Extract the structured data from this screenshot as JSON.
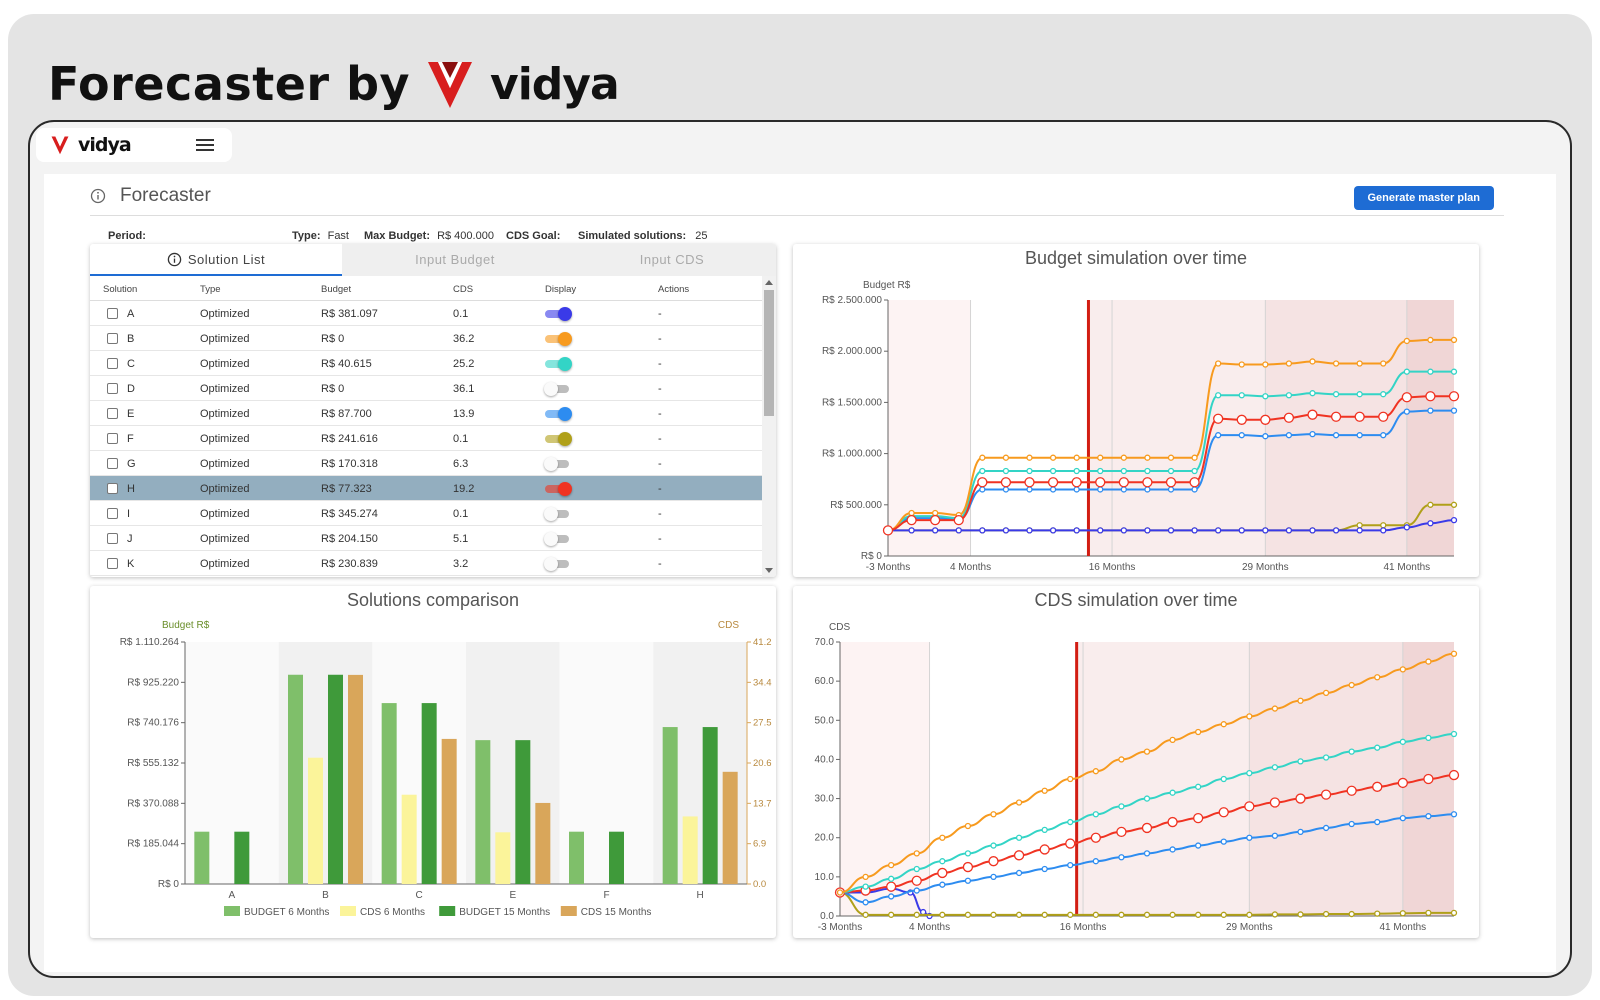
{
  "brand": {
    "prefix": "Forecaster by",
    "name": "vidya"
  },
  "app": {
    "name": "vidya",
    "page_title": "Forecaster",
    "generate_label": "Generate master plan"
  },
  "meta": {
    "period_label": "Period:",
    "type_label": "Type:",
    "type_value": "Fast",
    "max_budget_label": "Max Budget:",
    "max_budget_value": "R$ 400.000",
    "cds_goal_label": "CDS Goal:",
    "simulated_label": "Simulated solutions:",
    "simulated_value": "25"
  },
  "tabs": [
    "Solution List",
    "Input Budget",
    "Input CDS"
  ],
  "table": {
    "headers": [
      "Solution",
      "Type",
      "Budget",
      "CDS",
      "Display",
      "Actions"
    ],
    "rows": [
      {
        "solution": "A",
        "type": "Optimized",
        "budget": "R$ 381.097",
        "cds": "0.1",
        "display": true,
        "color": "#3a3ae8",
        "actions": "-"
      },
      {
        "solution": "B",
        "type": "Optimized",
        "budget": "R$ 0",
        "cds": "36.2",
        "display": true,
        "color": "#f79a1e",
        "actions": "-"
      },
      {
        "solution": "C",
        "type": "Optimized",
        "budget": "R$ 40.615",
        "cds": "25.2",
        "display": true,
        "color": "#33d4c6",
        "actions": "-"
      },
      {
        "solution": "D",
        "type": "Optimized",
        "budget": "R$ 0",
        "cds": "36.1",
        "display": false,
        "color": "#bdbdbd",
        "actions": "-"
      },
      {
        "solution": "E",
        "type": "Optimized",
        "budget": "R$ 87.700",
        "cds": "13.9",
        "display": true,
        "color": "#2d8cf0",
        "actions": "-"
      },
      {
        "solution": "F",
        "type": "Optimized",
        "budget": "R$ 241.616",
        "cds": "0.1",
        "display": true,
        "color": "#b0a019",
        "actions": "-"
      },
      {
        "solution": "G",
        "type": "Optimized",
        "budget": "R$ 170.318",
        "cds": "6.3",
        "display": false,
        "color": "#bdbdbd",
        "actions": "-"
      },
      {
        "solution": "H",
        "type": "Optimized",
        "budget": "R$ 77.323",
        "cds": "19.2",
        "display": true,
        "color": "#f03322",
        "actions": "-",
        "selected": true
      },
      {
        "solution": "I",
        "type": "Optimized",
        "budget": "R$ 345.274",
        "cds": "0.1",
        "display": false,
        "color": "#bdbdbd",
        "actions": "-"
      },
      {
        "solution": "J",
        "type": "Optimized",
        "budget": "R$ 204.150",
        "cds": "5.1",
        "display": false,
        "color": "#bdbdbd",
        "actions": "-"
      },
      {
        "solution": "K",
        "type": "Optimized",
        "budget": "R$ 230.839",
        "cds": "3.2",
        "display": false,
        "color": "#bdbdbd",
        "actions": "-"
      }
    ]
  },
  "chart_data": [
    {
      "type": "line",
      "title": "Budget simulation over time",
      "ylabel": "Budget R$",
      "x_range": [
        -3,
        45
      ],
      "xticks": [
        {
          "x": -3,
          "label": "-3 Months"
        },
        {
          "x": 4,
          "label": "4 Months"
        },
        {
          "x": 16,
          "label": "16 Months"
        },
        {
          "x": 29,
          "label": "29 Months"
        },
        {
          "x": 41,
          "label": "41 Months"
        }
      ],
      "ylim": [
        0,
        2500000
      ],
      "yticks": [
        {
          "y": 0,
          "label": "R$ 0"
        },
        {
          "y": 500000,
          "label": "R$ 500.000"
        },
        {
          "y": 1000000,
          "label": "R$ 1.000.000"
        },
        {
          "y": 1500000,
          "label": "R$ 1.500.000"
        },
        {
          "y": 2000000,
          "label": "R$ 2.000.000"
        },
        {
          "y": 2500000,
          "label": "R$ 2.500.000"
        }
      ],
      "current_x": 14,
      "grid": true,
      "series": [
        {
          "color": "#b0a019",
          "x": [
            -3,
            -1,
            1,
            3,
            5,
            7,
            9,
            11,
            13,
            15,
            17,
            19,
            21,
            23,
            25,
            27,
            29,
            31,
            33,
            35,
            37,
            39,
            41,
            43,
            45
          ],
          "values": [
            250000,
            250000,
            250000,
            250000,
            250000,
            250000,
            250000,
            250000,
            250000,
            250000,
            250000,
            250000,
            250000,
            250000,
            250000,
            250000,
            250000,
            250000,
            250000,
            250000,
            300000,
            300000,
            300000,
            500000,
            500000
          ]
        },
        {
          "color": "#3a3ae8",
          "x": [
            -3,
            -1,
            1,
            3,
            5,
            7,
            9,
            11,
            13,
            15,
            17,
            19,
            21,
            23,
            25,
            27,
            29,
            31,
            33,
            35,
            37,
            39,
            41,
            43,
            45
          ],
          "values": [
            250000,
            250000,
            250000,
            250000,
            250000,
            250000,
            250000,
            250000,
            250000,
            250000,
            250000,
            250000,
            250000,
            250000,
            250000,
            250000,
            250000,
            250000,
            250000,
            250000,
            250000,
            250000,
            280000,
            320000,
            350000
          ]
        },
        {
          "color": "#2d8cf0",
          "x": [
            -3,
            -1,
            1,
            3,
            5,
            7,
            9,
            11,
            13,
            15,
            17,
            19,
            21,
            23,
            25,
            27,
            29,
            31,
            33,
            35,
            37,
            39,
            41,
            43,
            45
          ],
          "values": [
            250000,
            370000,
            370000,
            360000,
            650000,
            650000,
            650000,
            650000,
            650000,
            650000,
            650000,
            650000,
            650000,
            650000,
            1180000,
            1180000,
            1170000,
            1180000,
            1190000,
            1180000,
            1180000,
            1180000,
            1410000,
            1420000,
            1420000
          ]
        },
        {
          "color": "#33d4c6",
          "x": [
            -3,
            -1,
            1,
            3,
            5,
            7,
            9,
            11,
            13,
            15,
            17,
            19,
            21,
            23,
            25,
            27,
            29,
            31,
            33,
            35,
            37,
            39,
            41,
            43,
            45
          ],
          "values": [
            250000,
            390000,
            390000,
            370000,
            830000,
            830000,
            830000,
            830000,
            830000,
            830000,
            830000,
            830000,
            830000,
            830000,
            1570000,
            1570000,
            1560000,
            1570000,
            1590000,
            1580000,
            1580000,
            1580000,
            1800000,
            1800000,
            1800000
          ]
        },
        {
          "color": "#f79a1e",
          "x": [
            -3,
            -1,
            1,
            3,
            5,
            7,
            9,
            11,
            13,
            15,
            17,
            19,
            21,
            23,
            25,
            27,
            29,
            31,
            33,
            35,
            37,
            39,
            41,
            43,
            45
          ],
          "values": [
            250000,
            420000,
            420000,
            400000,
            960000,
            960000,
            960000,
            960000,
            960000,
            960000,
            960000,
            960000,
            960000,
            960000,
            1880000,
            1870000,
            1870000,
            1880000,
            1900000,
            1880000,
            1880000,
            1880000,
            2100000,
            2110000,
            2110000
          ]
        },
        {
          "color": "#f03322",
          "marker": "large",
          "x": [
            -3,
            -1,
            1,
            3,
            5,
            7,
            9,
            11,
            13,
            15,
            17,
            19,
            21,
            23,
            25,
            27,
            29,
            31,
            33,
            35,
            37,
            39,
            41,
            43,
            45
          ],
          "values": [
            250000,
            350000,
            350000,
            350000,
            720000,
            720000,
            720000,
            720000,
            720000,
            720000,
            720000,
            720000,
            720000,
            720000,
            1340000,
            1330000,
            1330000,
            1350000,
            1380000,
            1360000,
            1360000,
            1360000,
            1550000,
            1560000,
            1560000
          ]
        }
      ]
    },
    {
      "type": "bar",
      "title": "Solutions comparison",
      "ylabel": "Budget R$",
      "y2label": "CDS",
      "categories": [
        "A",
        "B",
        "C",
        "E",
        "F",
        "H"
      ],
      "ylim": [
        0,
        1110264
      ],
      "yticks": [
        "R$ 0",
        "R$ 185.044",
        "R$ 370.088",
        "R$ 555.132",
        "R$ 740.176",
        "R$ 925.220",
        "R$ 1.110.264"
      ],
      "y2lim": [
        0,
        41.2
      ],
      "y2ticks": [
        "0.0",
        "6.9",
        "13.7",
        "20.6",
        "27.5",
        "34.4",
        "41.2"
      ],
      "legend_position": "bottom",
      "series": [
        {
          "name": "BUDGET 6 Months",
          "axis": "left",
          "color": "#7fbf6a",
          "values": [
            240000,
            960000,
            830000,
            660000,
            240000,
            720000
          ]
        },
        {
          "name": "CDS 6 Months",
          "axis": "right",
          "color": "#fbf49a",
          "values": [
            0,
            21.5,
            15.2,
            8.8,
            0,
            11.5
          ]
        },
        {
          "name": "BUDGET 15 Months",
          "axis": "left",
          "color": "#3f9a3a",
          "values": [
            240000,
            960000,
            830000,
            660000,
            240000,
            720000
          ]
        },
        {
          "name": "CDS 15 Months",
          "axis": "right",
          "color": "#d9a65a",
          "values": [
            0,
            35.6,
            24.7,
            13.8,
            0,
            19.1
          ]
        }
      ]
    },
    {
      "type": "line",
      "title": "CDS simulation over time",
      "ylabel": "CDS",
      "x_range": [
        -3,
        45
      ],
      "xticks": [
        {
          "x": -3,
          "label": "-3 Months"
        },
        {
          "x": 4,
          "label": "4 Months"
        },
        {
          "x": 16,
          "label": "16 Months"
        },
        {
          "x": 29,
          "label": "29 Months"
        },
        {
          "x": 41,
          "label": "41 Months"
        }
      ],
      "ylim": [
        0,
        70
      ],
      "yticks": [
        {
          "y": 0,
          "label": "0.0"
        },
        {
          "y": 10,
          "label": "10.0"
        },
        {
          "y": 20,
          "label": "20.0"
        },
        {
          "y": 30,
          "label": "30.0"
        },
        {
          "y": 40,
          "label": "40.0"
        },
        {
          "y": 50,
          "label": "50.0"
        },
        {
          "y": 60,
          "label": "60.0"
        },
        {
          "y": 70,
          "label": "70.0"
        }
      ],
      "current_x": 15.5,
      "grid": true,
      "series": [
        {
          "color": "#3a3ae8",
          "x": [
            -3,
            -1,
            1,
            2.5,
            3.5,
            4
          ],
          "values": [
            6,
            6,
            7,
            6,
            1,
            0
          ]
        },
        {
          "color": "#b0a019",
          "x": [
            -3,
            -1,
            1,
            3,
            5,
            7,
            9,
            11,
            13,
            15,
            17,
            19,
            21,
            23,
            25,
            27,
            29,
            31,
            33,
            35,
            37,
            39,
            41,
            43,
            45
          ],
          "values": [
            6,
            0.3,
            0.3,
            0.3,
            0.3,
            0.3,
            0.3,
            0.3,
            0.3,
            0.3,
            0.3,
            0.3,
            0.3,
            0.3,
            0.3,
            0.3,
            0.3,
            0.4,
            0.4,
            0.5,
            0.5,
            0.6,
            0.7,
            0.8,
            0.8
          ]
        },
        {
          "color": "#2d8cf0",
          "x": [
            -3,
            -1,
            1,
            3,
            5,
            7,
            9,
            11,
            13,
            15,
            17,
            19,
            21,
            23,
            25,
            27,
            29,
            31,
            33,
            35,
            37,
            39,
            41,
            43,
            45
          ],
          "values": [
            6,
            3.5,
            5,
            6.5,
            8,
            9,
            10,
            11,
            12,
            13,
            14,
            15,
            16,
            17,
            18,
            19,
            20,
            20.5,
            21.5,
            22.5,
            23.5,
            24,
            25,
            25.5,
            26
          ]
        },
        {
          "color": "#f03322",
          "marker": "large",
          "x": [
            -3,
            -1,
            1,
            3,
            5,
            7,
            9,
            11,
            13,
            15,
            17,
            19,
            21,
            23,
            25,
            27,
            29,
            31,
            33,
            35,
            37,
            39,
            41,
            43,
            45
          ],
          "values": [
            6,
            6.5,
            7.5,
            9,
            11,
            12.5,
            14,
            15.5,
            17,
            18.5,
            20,
            21.5,
            22.5,
            24,
            25,
            26.5,
            28,
            29,
            30,
            31,
            32,
            33,
            34,
            35,
            36
          ]
        },
        {
          "color": "#33d4c6",
          "x": [
            -3,
            -1,
            1,
            3,
            5,
            7,
            9,
            11,
            13,
            15,
            17,
            19,
            21,
            23,
            25,
            27,
            29,
            31,
            33,
            35,
            37,
            39,
            41,
            43,
            45
          ],
          "values": [
            6,
            7.5,
            9.5,
            12,
            14,
            16,
            18,
            20,
            22,
            24,
            26,
            28,
            30,
            31.5,
            33,
            35,
            36.5,
            38,
            39.5,
            40.5,
            42,
            43,
            44.5,
            45.5,
            46.5
          ]
        },
        {
          "color": "#f79a1e",
          "x": [
            -3,
            -1,
            1,
            3,
            5,
            7,
            9,
            11,
            13,
            15,
            17,
            19,
            21,
            23,
            25,
            27,
            29,
            31,
            33,
            35,
            37,
            39,
            41,
            43,
            45
          ],
          "values": [
            6,
            10,
            13,
            16,
            20,
            23,
            26,
            29,
            32,
            35,
            37,
            40,
            42,
            45,
            47,
            49,
            51,
            53,
            55,
            57,
            59,
            61,
            63,
            65,
            67
          ]
        }
      ]
    }
  ]
}
